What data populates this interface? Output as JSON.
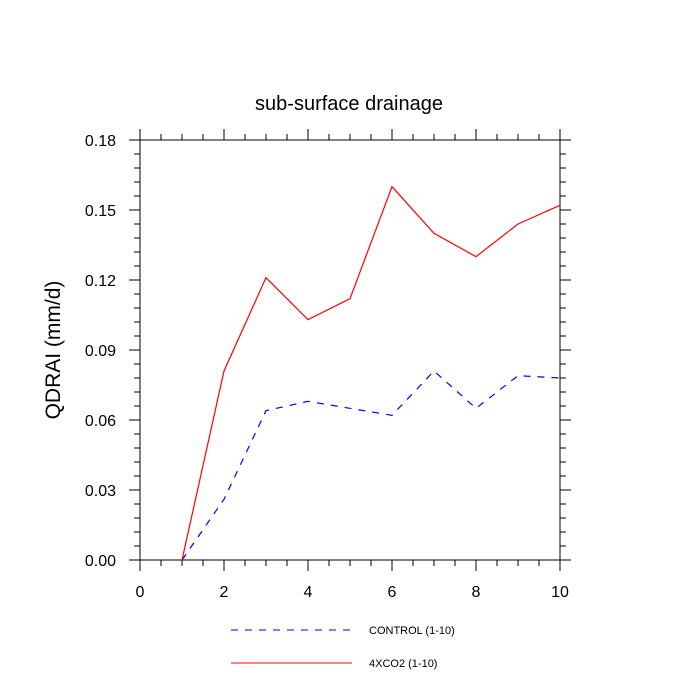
{
  "chart_data": {
    "type": "line",
    "title": "sub-surface drainage",
    "xlabel": "",
    "ylabel": "QDRAI  (mm/d)",
    "xlim": [
      0,
      10
    ],
    "ylim": [
      0,
      0.18
    ],
    "xticks": [
      0,
      2,
      4,
      6,
      8,
      10
    ],
    "xtick_labels": [
      "0",
      "2",
      "4",
      "6",
      "8",
      "10"
    ],
    "yticks": [
      0,
      0.03,
      0.06,
      0.09,
      0.12,
      0.15,
      0.18
    ],
    "ytick_labels": [
      "0.00",
      "0.03",
      "0.06",
      "0.09",
      "0.12",
      "0.15",
      "0.18"
    ],
    "grid": false,
    "legend_position": "bottom",
    "x": [
      1,
      2,
      3,
      4,
      5,
      6,
      7,
      8,
      9,
      10
    ],
    "series": [
      {
        "name": "CONTROL (1-10)",
        "color": "#0000ff",
        "dashed": true,
        "values": [
          0.0,
          0.026,
          0.064,
          0.068,
          0.065,
          0.062,
          0.081,
          0.065,
          0.079,
          0.078
        ]
      },
      {
        "name": "4XCO2 (1-10)",
        "color": "#ff0000",
        "dashed": false,
        "values": [
          0.0,
          0.081,
          0.121,
          0.103,
          0.112,
          0.16,
          0.14,
          0.13,
          0.144,
          0.152
        ]
      }
    ]
  }
}
